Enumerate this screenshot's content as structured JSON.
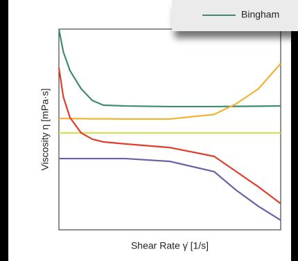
{
  "chart_data": {
    "type": "line",
    "x_label": "Shear Rate γ̇ [1/s]",
    "y_label": "Viscosity η [mPa·s]",
    "x": [
      0,
      2,
      5,
      10,
      15,
      20,
      30,
      50,
      70,
      80,
      90,
      100
    ],
    "xlim": [
      0,
      100
    ],
    "ylim": [
      0,
      100
    ],
    "series": [
      {
        "name": "Bingham",
        "color": "#3d8a6c",
        "values": [
          100,
          88.6,
          79.3,
          70.3,
          64.5,
          62.1,
          61.7,
          61.4,
          61.4,
          61.5,
          61.6,
          61.7
        ]
      },
      {
        "color": "#f2b233",
        "values": [
          55.5,
          55.5,
          55.4,
          55.4,
          55.3,
          55.3,
          55.2,
          55.2,
          57.5,
          62.8,
          70.3,
          82.8
        ]
      },
      {
        "color": "#d6e04a",
        "values": [
          48.3,
          48.3,
          48.3,
          48.3,
          48.3,
          48.3,
          48.3,
          48.3,
          48.3,
          48.3,
          48.3,
          48.3
        ]
      },
      {
        "color": "#e03c2a",
        "values": [
          80.7,
          66.2,
          55.9,
          48.3,
          45.2,
          43.8,
          42.8,
          41,
          36.6,
          29,
          21.4,
          13.1
        ]
      },
      {
        "color": "#6b5fa6",
        "values": [
          35.5,
          35.5,
          35.5,
          35.5,
          35.5,
          35.5,
          35.5,
          34.1,
          29,
          19.7,
          11.7,
          4.8
        ]
      }
    ]
  }
}
